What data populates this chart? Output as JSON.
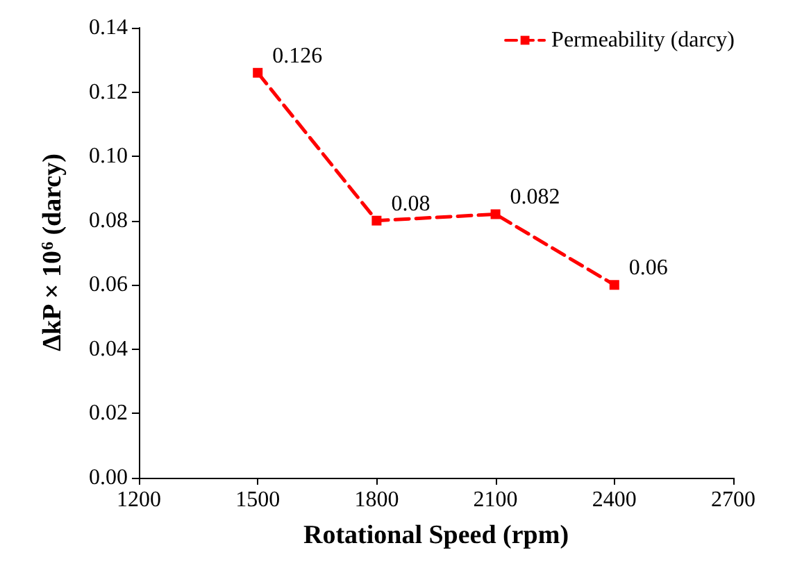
{
  "chart_data": {
    "type": "line",
    "xlabel": "Rotational Speed (rpm)",
    "ylabel": "ΔkP × 10$^{6}$ (darcy)",
    "x": [
      1500,
      1800,
      2100,
      2400
    ],
    "series": [
      {
        "name": "Permeability (darcy)",
        "color": "#ff0000",
        "values": [
          0.126,
          0.08,
          0.082,
          0.06
        ]
      }
    ],
    "xlim": [
      1200,
      2700
    ],
    "xticks": [
      1200,
      1500,
      1800,
      2100,
      2400,
      2700
    ],
    "ylim": [
      0,
      0.14
    ],
    "yticks": [
      {
        "value": 0,
        "label": "0.00"
      },
      {
        "value": 0.02,
        "label": "0.02"
      },
      {
        "value": 0.04,
        "label": "0.04"
      },
      {
        "value": 0.06,
        "label": "0.06"
      },
      {
        "value": 0.08,
        "label": "0.08"
      },
      {
        "value": 0.1,
        "label": "0.10"
      },
      {
        "value": 0.12,
        "label": "0.12"
      },
      {
        "value": 0.14,
        "label": "0.14"
      }
    ],
    "data_labels": true,
    "legend": "top right",
    "marker": "square",
    "line_style": "dashed",
    "grid": false
  }
}
